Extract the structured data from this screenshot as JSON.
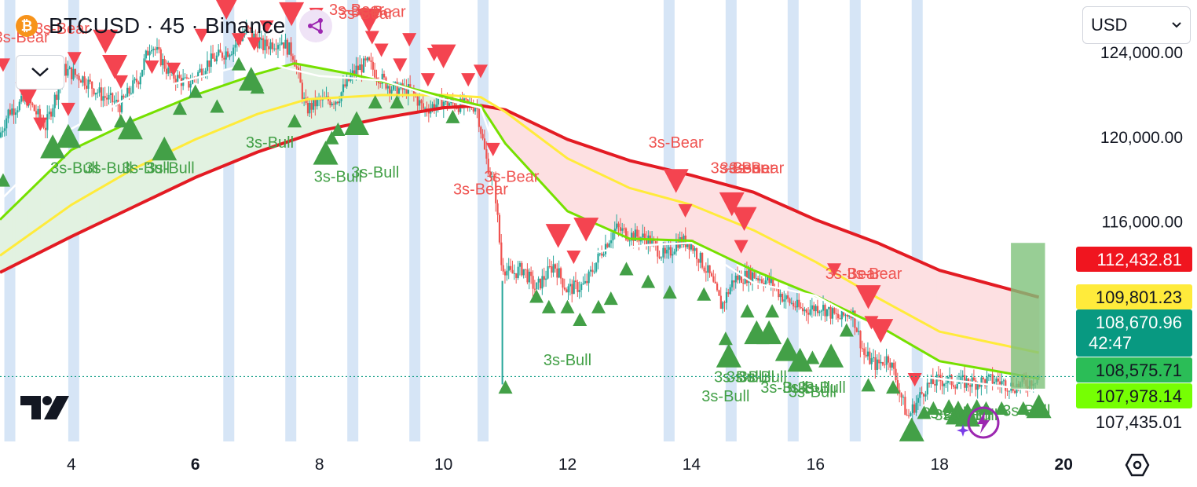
{
  "header": {
    "coin_symbol": "₿",
    "title": "BTCUSD · 45 · Binance"
  },
  "currency_select": {
    "value": "USD"
  },
  "colors": {
    "bull": "#4caf50",
    "bear": "#f23645",
    "red_line": "#e31b23",
    "yellow_line": "#ffeb3b",
    "green_line": "#76e000",
    "white_line": "#ffffff",
    "bull_fill": "#e2f2e1",
    "bear_fill": "#fde0e2",
    "session_band": "#cfe0f5",
    "last_price_badge": "#089981",
    "pred_box": "#7ec27a"
  },
  "chart_data": {
    "type": "candlestick",
    "ylim": [
      105600,
      126500
    ],
    "xlim": [
      2.85,
      20.2
    ],
    "x_ticks": [
      {
        "value": 4,
        "label": "4",
        "bold": false
      },
      {
        "value": 6,
        "label": "6",
        "bold": true
      },
      {
        "value": 8,
        "label": "8",
        "bold": false
      },
      {
        "value": 10,
        "label": "10",
        "bold": false
      },
      {
        "value": 12,
        "label": "12",
        "bold": false
      },
      {
        "value": 14,
        "label": "14",
        "bold": false
      },
      {
        "value": 16,
        "label": "16",
        "bold": false
      },
      {
        "value": 18,
        "label": "18",
        "bold": false
      },
      {
        "value": 20,
        "label": "20",
        "bold": true
      }
    ],
    "y_ticks": [
      {
        "value": 124000,
        "label": "124,000.00"
      },
      {
        "value": 120000,
        "label": "120,000.00"
      },
      {
        "value": 116000,
        "label": "116,000.00"
      }
    ],
    "price_badges": [
      {
        "value": 112432.81,
        "label": "112,432.81",
        "bg": "#f0151f",
        "fg": "#ffffff"
      },
      {
        "value": 109801.23,
        "label": "109,801.23",
        "bg": "#ffeb3b",
        "fg": "#131722"
      },
      {
        "value": 108670.96,
        "label": "108,670.96",
        "sub": "42:47",
        "bg": "#089981",
        "fg": "#ffffff"
      },
      {
        "value": 108575.71,
        "label": "108,575.71",
        "bg": "#2bbd57",
        "fg": "#131722"
      },
      {
        "value": 107978.14,
        "label": "107,978.14",
        "bg": "#76ff03",
        "fg": "#131722"
      },
      {
        "value": 107435.01,
        "label": "107,435.01",
        "bg": "#ffffff",
        "fg": "#131722"
      }
    ],
    "last_price": 108670.96,
    "price_path": [
      [
        2.85,
        120000
      ],
      [
        3.0,
        121200
      ],
      [
        3.3,
        121800
      ],
      [
        3.6,
        120500
      ],
      [
        3.9,
        123200
      ],
      [
        4.2,
        122800
      ],
      [
        4.5,
        122000
      ],
      [
        4.8,
        121500
      ],
      [
        5.1,
        122800
      ],
      [
        5.3,
        124500
      ],
      [
        5.6,
        123000
      ],
      [
        5.9,
        122500
      ],
      [
        6.2,
        123500
      ],
      [
        6.6,
        124200
      ],
      [
        6.85,
        125100
      ],
      [
        7.1,
        124300
      ],
      [
        7.4,
        124600
      ],
      [
        7.6,
        123900
      ],
      [
        7.8,
        121300
      ],
      [
        8.0,
        121700
      ],
      [
        8.3,
        121800
      ],
      [
        8.6,
        123200
      ],
      [
        8.8,
        123500
      ],
      [
        9.0,
        122800
      ],
      [
        9.2,
        122300
      ],
      [
        9.5,
        122200
      ],
      [
        9.7,
        121300
      ],
      [
        10.0,
        121700
      ],
      [
        10.3,
        121500
      ],
      [
        10.55,
        121500
      ],
      [
        10.7,
        119000
      ],
      [
        10.85,
        117500
      ],
      [
        10.95,
        114000
      ],
      [
        11.1,
        113500
      ],
      [
        11.3,
        113800
      ],
      [
        11.5,
        112800
      ],
      [
        11.8,
        114000
      ],
      [
        12.0,
        112800
      ],
      [
        12.3,
        113000
      ],
      [
        12.6,
        114800
      ],
      [
        12.8,
        115700
      ],
      [
        13.0,
        115400
      ],
      [
        13.3,
        115200
      ],
      [
        13.6,
        114300
      ],
      [
        13.8,
        115100
      ],
      [
        14.0,
        115000
      ],
      [
        14.3,
        113500
      ],
      [
        14.5,
        112000
      ],
      [
        14.7,
        113300
      ],
      [
        15.0,
        113500
      ],
      [
        15.3,
        113100
      ],
      [
        15.5,
        112400
      ],
      [
        15.8,
        111800
      ],
      [
        16.1,
        112000
      ],
      [
        16.4,
        111400
      ],
      [
        16.6,
        111800
      ],
      [
        16.8,
        109700
      ],
      [
        17.0,
        109200
      ],
      [
        17.2,
        109600
      ],
      [
        17.35,
        108200
      ],
      [
        17.5,
        106700
      ],
      [
        17.65,
        107500
      ],
      [
        17.8,
        108200
      ],
      [
        18.0,
        108500
      ],
      [
        18.3,
        108400
      ],
      [
        18.6,
        108400
      ],
      [
        18.9,
        108500
      ],
      [
        19.2,
        108200
      ],
      [
        19.45,
        108400
      ],
      [
        19.6,
        108670.96
      ]
    ],
    "series": [
      {
        "name": "",
        "color": "#e31b23",
        "width": 4,
        "points": [
          [
            2.85,
            113600
          ],
          [
            4,
            115300
          ],
          [
            5,
            116700
          ],
          [
            6,
            118100
          ],
          [
            7,
            119300
          ],
          [
            8,
            120300
          ],
          [
            9,
            120900
          ],
          [
            10,
            121400
          ],
          [
            10.6,
            121500
          ],
          [
            11,
            121300
          ],
          [
            12,
            119900
          ],
          [
            13,
            118900
          ],
          [
            14,
            118200
          ],
          [
            15,
            117400
          ],
          [
            16,
            116100
          ],
          [
            17,
            115000
          ],
          [
            18,
            113700
          ],
          [
            19.6,
            112432.81
          ]
        ]
      },
      {
        "name": "",
        "color": "#ffeb3b",
        "width": 3,
        "points": [
          [
            2.85,
            114400
          ],
          [
            4,
            116800
          ],
          [
            5,
            118500
          ],
          [
            6,
            119900
          ],
          [
            7,
            121100
          ],
          [
            7.8,
            121800
          ],
          [
            9,
            122000
          ],
          [
            10,
            122000
          ],
          [
            10.6,
            121900
          ],
          [
            11,
            121200
          ],
          [
            12,
            119000
          ],
          [
            13,
            117600
          ],
          [
            14,
            116800
          ],
          [
            15,
            115600
          ],
          [
            16,
            114100
          ],
          [
            17,
            112400
          ],
          [
            18,
            110800
          ],
          [
            19.6,
            109801.23
          ]
        ]
      },
      {
        "name": "",
        "color": "#76e000",
        "width": 3,
        "points": [
          [
            2.85,
            116100
          ],
          [
            4,
            119400
          ],
          [
            5,
            120800
          ],
          [
            6,
            122000
          ],
          [
            7,
            123000
          ],
          [
            7.6,
            123500
          ],
          [
            8.5,
            123000
          ],
          [
            9.5,
            122300
          ],
          [
            10.6,
            121500
          ],
          [
            11,
            119700
          ],
          [
            12,
            116500
          ],
          [
            13,
            115200
          ],
          [
            14,
            115100
          ],
          [
            15,
            113700
          ],
          [
            16,
            112500
          ],
          [
            17,
            111100
          ],
          [
            18,
            109400
          ],
          [
            19.6,
            108575.71
          ]
        ]
      },
      {
        "name": "",
        "color": "#ffffff",
        "width": 2.5,
        "points": [
          [
            2.85,
            117000
          ],
          [
            4,
            120400
          ],
          [
            5,
            122000
          ],
          [
            6,
            122800
          ],
          [
            7,
            123600
          ],
          [
            8,
            122900
          ],
          [
            9,
            122700
          ],
          [
            10,
            121800
          ],
          [
            10.6,
            121400
          ],
          [
            11,
            118000
          ],
          [
            11.8,
            114800
          ],
          [
            12.5,
            114600
          ],
          [
            13.3,
            114900
          ],
          [
            14,
            115000
          ],
          [
            15,
            113100
          ],
          [
            16,
            112500
          ],
          [
            17,
            110900
          ],
          [
            17.6,
            108700
          ],
          [
            18.5,
            108400
          ],
          [
            19.6,
            107978.14
          ]
        ]
      }
    ],
    "session_bands": [
      2.92,
      3.95,
      6.45,
      7.45,
      8.45,
      9.45,
      10.55,
      13.55,
      14.55,
      15.55,
      16.55,
      17.55
    ],
    "prediction_box": {
      "x0": 19.15,
      "x1": 19.7,
      "y0": 108100,
      "y1": 115000
    },
    "signals_bear": [
      [
        2.9,
        123400,
        "s"
      ],
      [
        3.3,
        122000,
        "m"
      ],
      [
        3.5,
        120600,
        "s"
      ],
      [
        3.95,
        121300,
        "s"
      ],
      [
        4.05,
        123700,
        "s"
      ],
      [
        4.55,
        124500,
        "m"
      ],
      [
        4.7,
        123300,
        "m"
      ],
      [
        4.8,
        122600,
        "s"
      ],
      [
        5.3,
        123300,
        "s"
      ],
      [
        5.65,
        123200,
        "s"
      ],
      [
        6.1,
        124800,
        "s"
      ],
      [
        6.5,
        126100,
        "m"
      ],
      [
        6.7,
        124600,
        "s"
      ],
      [
        6.95,
        124400,
        "s"
      ],
      [
        7.15,
        125200,
        "s"
      ],
      [
        7.55,
        125800,
        "m"
      ],
      [
        7.95,
        125800,
        "s"
      ],
      [
        8.8,
        125500,
        "m"
      ],
      [
        8.85,
        124700,
        "s"
      ],
      [
        9.0,
        124100,
        "s"
      ],
      [
        9.3,
        123400,
        "s"
      ],
      [
        9.45,
        124600,
        "s"
      ],
      [
        9.75,
        122700,
        "s"
      ],
      [
        9.85,
        123900,
        "s"
      ],
      [
        10.0,
        123800,
        "m"
      ],
      [
        10.4,
        122700,
        "s"
      ],
      [
        10.6,
        123100,
        "s"
      ],
      [
        10.8,
        119400,
        "s"
      ],
      [
        11.85,
        115300,
        "m"
      ],
      [
        12.3,
        115600,
        "m"
      ],
      [
        12.1,
        114300,
        "s"
      ],
      [
        13.75,
        117900,
        "m"
      ],
      [
        13.9,
        116500,
        "s"
      ],
      [
        14.65,
        116800,
        "m"
      ],
      [
        14.85,
        116100,
        "m"
      ],
      [
        14.8,
        114800,
        "s"
      ],
      [
        16.3,
        113700,
        "s"
      ],
      [
        16.85,
        112400,
        "m"
      ],
      [
        16.9,
        111200,
        "s"
      ],
      [
        17.05,
        110800,
        "m"
      ],
      [
        17.6,
        108500,
        "s"
      ]
    ],
    "signals_bull": [
      [
        2.9,
        118000,
        "s"
      ],
      [
        3.7,
        119600,
        "m"
      ],
      [
        3.95,
        120100,
        "m"
      ],
      [
        4.3,
        120900,
        "m"
      ],
      [
        4.8,
        120800,
        "s"
      ],
      [
        4.95,
        120500,
        "m"
      ],
      [
        5.5,
        119500,
        "m"
      ],
      [
        5.75,
        121400,
        "s"
      ],
      [
        6.0,
        122200,
        "s"
      ],
      [
        6.35,
        121500,
        "s"
      ],
      [
        6.7,
        123500,
        "s"
      ],
      [
        6.9,
        122800,
        "m"
      ],
      [
        7.0,
        122400,
        "s"
      ],
      [
        7.6,
        120800,
        "s"
      ],
      [
        8.1,
        119300,
        "m"
      ],
      [
        8.2,
        120000,
        "s"
      ],
      [
        8.3,
        120400,
        "s"
      ],
      [
        8.6,
        120700,
        "m"
      ],
      [
        8.9,
        121700,
        "s"
      ],
      [
        9.25,
        121700,
        "s"
      ],
      [
        10.15,
        121000,
        "s"
      ],
      [
        11.0,
        108200,
        "s"
      ],
      [
        11.5,
        112500,
        "s"
      ],
      [
        11.7,
        112000,
        "s"
      ],
      [
        12.0,
        112000,
        "s"
      ],
      [
        12.2,
        111400,
        "s"
      ],
      [
        12.5,
        112000,
        "s"
      ],
      [
        12.7,
        112400,
        "s"
      ],
      [
        12.95,
        113800,
        "s"
      ],
      [
        13.3,
        113200,
        "s"
      ],
      [
        13.65,
        112700,
        "s"
      ],
      [
        14.2,
        112600,
        "s"
      ],
      [
        14.55,
        110500,
        "s"
      ],
      [
        14.6,
        109700,
        "m"
      ],
      [
        14.9,
        111800,
        "s"
      ],
      [
        15.05,
        110800,
        "m"
      ],
      [
        15.25,
        110800,
        "m"
      ],
      [
        15.3,
        111800,
        "s"
      ],
      [
        15.55,
        110000,
        "m"
      ],
      [
        15.75,
        109500,
        "m"
      ],
      [
        15.95,
        109600,
        "s"
      ],
      [
        16.25,
        109700,
        "m"
      ],
      [
        16.5,
        110900,
        "s"
      ],
      [
        16.85,
        108300,
        "s"
      ],
      [
        17.25,
        108200,
        "s"
      ],
      [
        17.55,
        106200,
        "m"
      ],
      [
        17.75,
        107000,
        "s"
      ],
      [
        17.9,
        107200,
        "s"
      ],
      [
        18.15,
        107300,
        "s"
      ],
      [
        18.3,
        107000,
        "m"
      ],
      [
        18.45,
        106900,
        "m"
      ],
      [
        18.6,
        107300,
        "s"
      ],
      [
        18.75,
        107200,
        "s"
      ],
      [
        19.0,
        107200,
        "s"
      ],
      [
        19.35,
        107200,
        "s"
      ],
      [
        19.6,
        107300,
        "m"
      ]
    ],
    "labels_bear": [
      [
        3.2,
        124500
      ],
      [
        3.85,
        124900
      ],
      [
        7.95,
        126700
      ],
      [
        8.6,
        125800
      ],
      [
        8.75,
        125600
      ],
      [
        8.95,
        125700
      ],
      [
        10.6,
        117300
      ],
      [
        11.1,
        117900
      ],
      [
        13.75,
        119500
      ],
      [
        14.75,
        118300
      ],
      [
        14.9,
        118300
      ],
      [
        15.05,
        118300
      ],
      [
        16.6,
        113300
      ],
      [
        16.95,
        113300
      ]
    ],
    "labels_bull": [
      [
        4.05,
        118300
      ],
      [
        4.6,
        118300
      ],
      [
        5.2,
        118300
      ],
      [
        5.6,
        118300
      ],
      [
        7.2,
        119500
      ],
      [
        8.3,
        117900
      ],
      [
        8.9,
        118100
      ],
      [
        12.0,
        109200
      ],
      [
        14.55,
        107500
      ],
      [
        14.75,
        108400
      ],
      [
        14.95,
        108400
      ],
      [
        15.15,
        108400
      ],
      [
        15.5,
        107900
      ],
      [
        15.85,
        107900
      ],
      [
        15.95,
        107700
      ],
      [
        16.1,
        107900
      ],
      [
        18.1,
        106700
      ],
      [
        18.3,
        106600
      ],
      [
        18.45,
        106600
      ],
      [
        18.55,
        106600
      ],
      [
        19.4,
        106800
      ]
    ]
  }
}
